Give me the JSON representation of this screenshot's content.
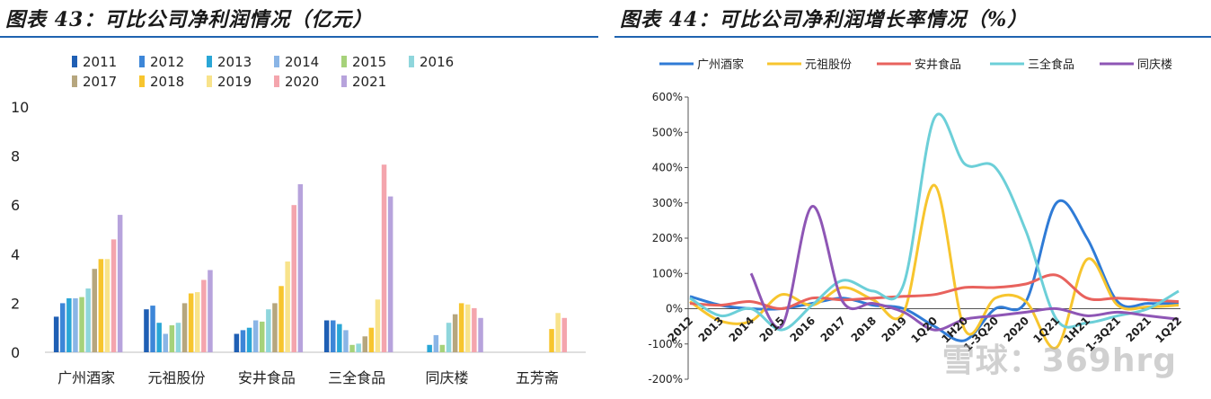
{
  "left_title": "图表 43：可比公司净利润情况（亿元）",
  "right_title": "图表 44：可比公司净利润增长率情况（%）",
  "watermark": "雪球：369hrg",
  "colors": {
    "2011": "#1f5fb4",
    "2012": "#3d86d8",
    "2013": "#2aa6d6",
    "2014": "#8ab5e6",
    "2015": "#a6d27a",
    "2016": "#8fd6dc",
    "2017": "#b6a67e",
    "2018": "#f7c52e",
    "2019": "#f8e38b",
    "2020": "#f4a5ad",
    "2021": "#b7a3dc"
  },
  "chart_data": [
    {
      "type": "bar",
      "title": "可比公司净利润情况（亿元）",
      "categories": [
        "广州酒家",
        "元祖股份",
        "安井食品",
        "三全食品",
        "同庆楼",
        "五芳斋"
      ],
      "series": [
        {
          "name": "2011",
          "values": [
            1.45,
            1.75,
            0.75,
            1.3,
            null,
            null
          ]
        },
        {
          "name": "2012",
          "values": [
            2.0,
            1.9,
            0.9,
            1.3,
            null,
            null
          ]
        },
        {
          "name": "2013",
          "values": [
            2.2,
            1.2,
            1.0,
            1.15,
            0.3,
            null
          ]
        },
        {
          "name": "2014",
          "values": [
            2.2,
            0.75,
            1.3,
            0.9,
            0.7,
            null
          ]
        },
        {
          "name": "2015",
          "values": [
            2.25,
            1.1,
            1.25,
            0.3,
            0.3,
            null
          ]
        },
        {
          "name": "2016",
          "values": [
            2.6,
            1.2,
            1.75,
            0.35,
            1.2,
            null
          ]
        },
        {
          "name": "2017",
          "values": [
            3.4,
            2.0,
            2.0,
            0.65,
            1.55,
            null
          ]
        },
        {
          "name": "2018",
          "values": [
            3.8,
            2.4,
            2.7,
            1.0,
            2.0,
            0.95
          ]
        },
        {
          "name": "2019",
          "values": [
            3.8,
            2.45,
            3.7,
            2.15,
            1.95,
            1.6
          ]
        },
        {
          "name": "2020",
          "values": [
            4.6,
            2.95,
            6.0,
            7.65,
            1.8,
            1.4
          ]
        },
        {
          "name": "2021",
          "values": [
            5.6,
            3.35,
            6.85,
            6.35,
            1.4,
            null
          ]
        }
      ],
      "ylim": [
        0,
        10
      ],
      "yticks": [
        "0",
        "2",
        "4",
        "6",
        "8",
        "10"
      ],
      "legend": "top"
    },
    {
      "type": "line",
      "title": "可比公司净利润增长率情况（%）",
      "x": [
        "2012",
        "2013",
        "2014",
        "2015",
        "2016",
        "2017",
        "2018",
        "2019",
        "1Q20",
        "1H20",
        "1-3Q20",
        "2020",
        "1Q21",
        "1H21",
        "1-3Q21",
        "2021",
        "1Q22"
      ],
      "series": [
        {
          "name": "广州酒家",
          "color": "#2f7bd6",
          "values": [
            35,
            10,
            0,
            0,
            15,
            30,
            10,
            0,
            -50,
            -90,
            0,
            20,
            300,
            200,
            20,
            15,
            15
          ]
        },
        {
          "name": "元祖股份",
          "color": "#f7c52e",
          "values": [
            20,
            -35,
            -35,
            40,
            10,
            60,
            25,
            -10,
            350,
            -60,
            30,
            20,
            -110,
            140,
            10,
            5,
            10
          ]
        },
        {
          "name": "安井食品",
          "color": "#e8625d",
          "values": [
            15,
            10,
            20,
            0,
            30,
            25,
            30,
            35,
            40,
            60,
            60,
            70,
            95,
            30,
            30,
            25,
            20
          ]
        },
        {
          "name": "三全食品",
          "color": "#6ccfd8",
          "values": [
            30,
            -20,
            0,
            -60,
            10,
            80,
            50,
            70,
            540,
            410,
            400,
            220,
            -30,
            -40,
            -20,
            0,
            50
          ]
        },
        {
          "name": "同庆楼",
          "color": "#8e56b5",
          "values": [
            null,
            null,
            100,
            -50,
            290,
            20,
            15,
            -10,
            -60,
            -30,
            -20,
            -10,
            0,
            -20,
            -10,
            -20,
            -30
          ]
        }
      ],
      "ylim": [
        -200,
        600
      ],
      "yticks": [
        "-200%",
        "-100%",
        "0%",
        "100%",
        "200%",
        "300%",
        "400%",
        "500%",
        "600%"
      ],
      "x_labels_shown": [
        "2012",
        "2013",
        "2014",
        "2015",
        "2016",
        "2017",
        "2018",
        "2019",
        "1Q20",
        "1H20",
        "1-3Q20",
        "2020",
        "1Q21",
        "1H21",
        "1-3Q21",
        "2021",
        "1Q22"
      ],
      "legend": "top"
    }
  ]
}
